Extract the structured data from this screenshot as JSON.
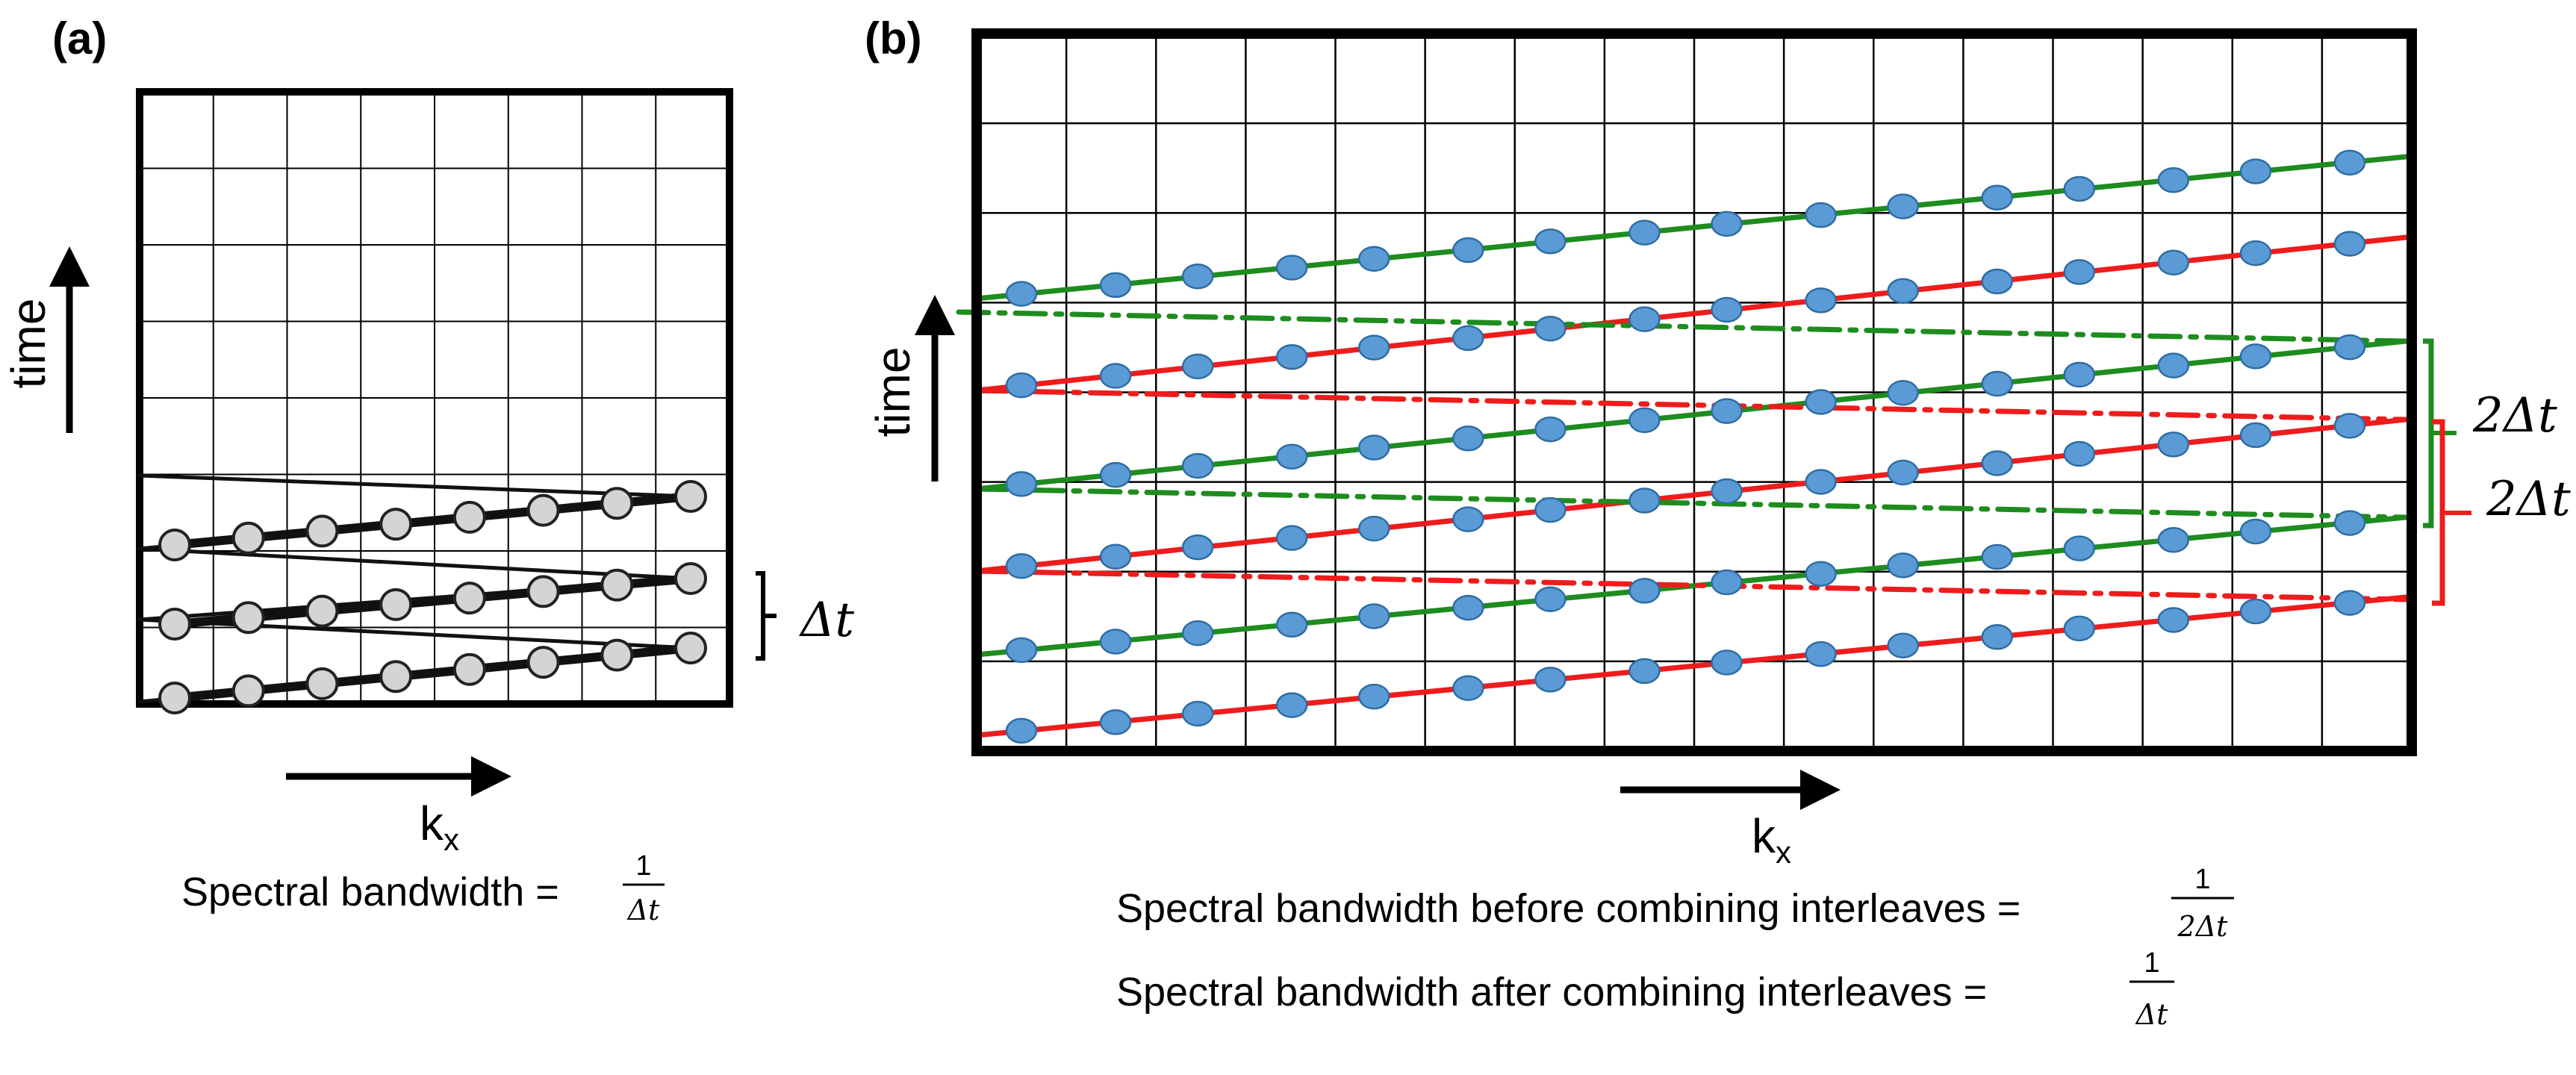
{
  "panel_a": {
    "label": "(a)",
    "y_axis_label": "time",
    "x_axis_label": "k",
    "x_axis_subscript": "x",
    "interval_label": "Δt",
    "caption_text": "Spectral bandwidth =",
    "caption_fraction_numerator": "1",
    "caption_fraction_denominator": "Δt",
    "trajectory_color": "#111111",
    "sample_color": "#d4d4d4"
  },
  "panel_b": {
    "label": "(b)",
    "y_axis_label": "time",
    "x_axis_label": "k",
    "x_axis_subscript": "x",
    "interval_label_green": "2Δt",
    "interval_label_red": "2Δt",
    "caption_before_text": "Spectral bandwidth before combining interleaves  =",
    "caption_before_numerator": "1",
    "caption_before_denominator": "2Δt",
    "caption_after_text": "Spectral bandwidth after combining interleaves  =",
    "caption_after_numerator": "1",
    "caption_after_denominator": "Δt",
    "interleave_colors": {
      "green": "#1e8c1e",
      "red": "#ee1c1c"
    },
    "sample_color": "#5b9bd5",
    "sample_edge_color": "#2e6da4"
  }
}
